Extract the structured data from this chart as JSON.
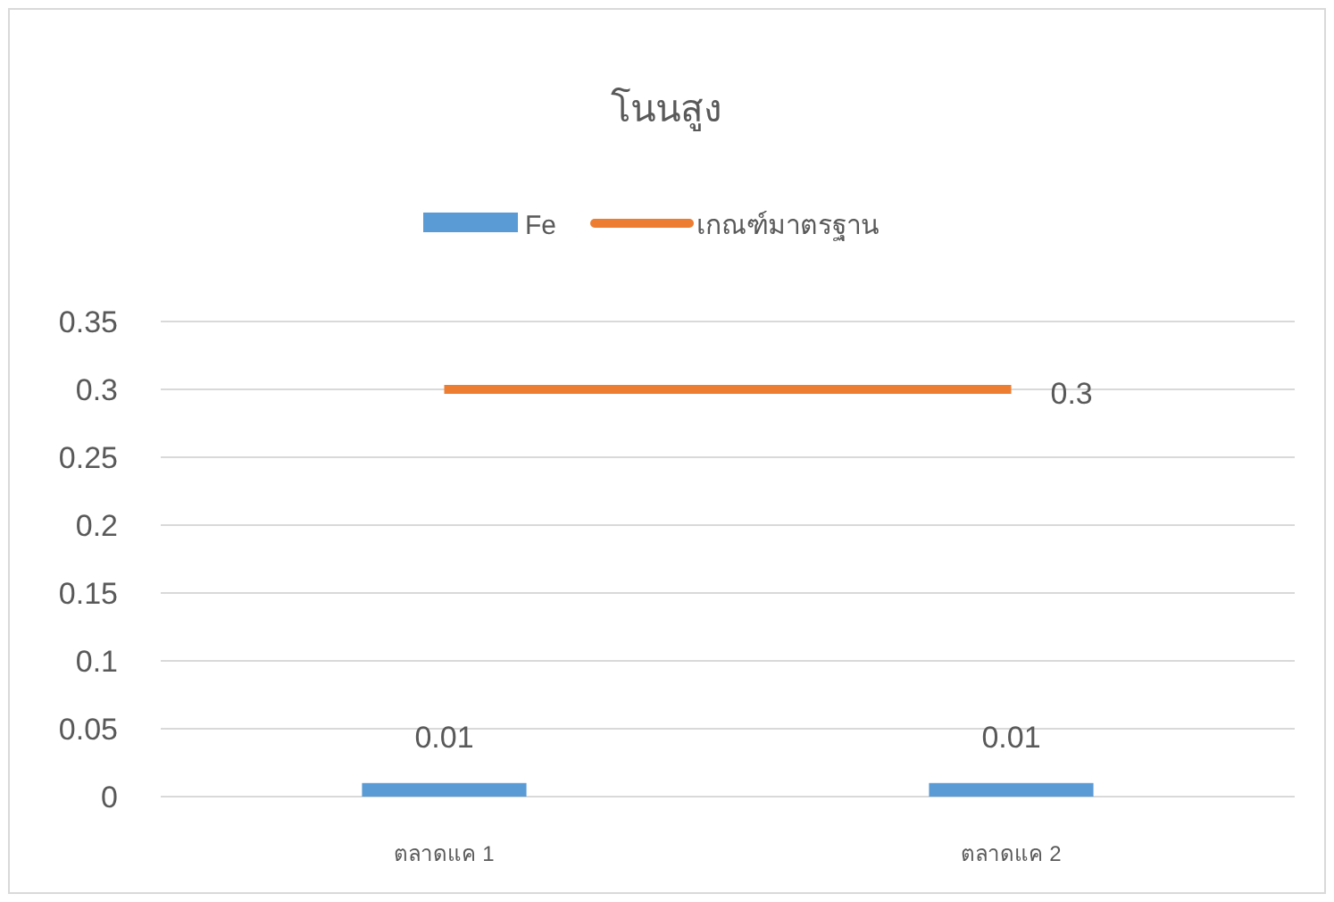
{
  "chart_data": {
    "type": "bar",
    "title": "โนนสูง",
    "categories": [
      "ตลาดแค 1",
      "ตลาดแค 2"
    ],
    "series": [
      {
        "name": "Fe",
        "color": "#5b9bd5",
        "values": [
          0.01,
          0.01
        ],
        "value_labels": [
          "0.01",
          "0.01"
        ]
      },
      {
        "name": "เกณฑ์มาตรฐาน",
        "type": "line",
        "color": "#ed7d31",
        "values": [
          0.3,
          0.3
        ],
        "value_labels": [
          null,
          "0.3"
        ]
      }
    ],
    "ylim": [
      0,
      0.35
    ],
    "yticks": [
      0,
      0.05,
      0.1,
      0.15,
      0.2,
      0.25,
      0.3,
      0.35
    ],
    "grid": "y",
    "legend": "top"
  }
}
